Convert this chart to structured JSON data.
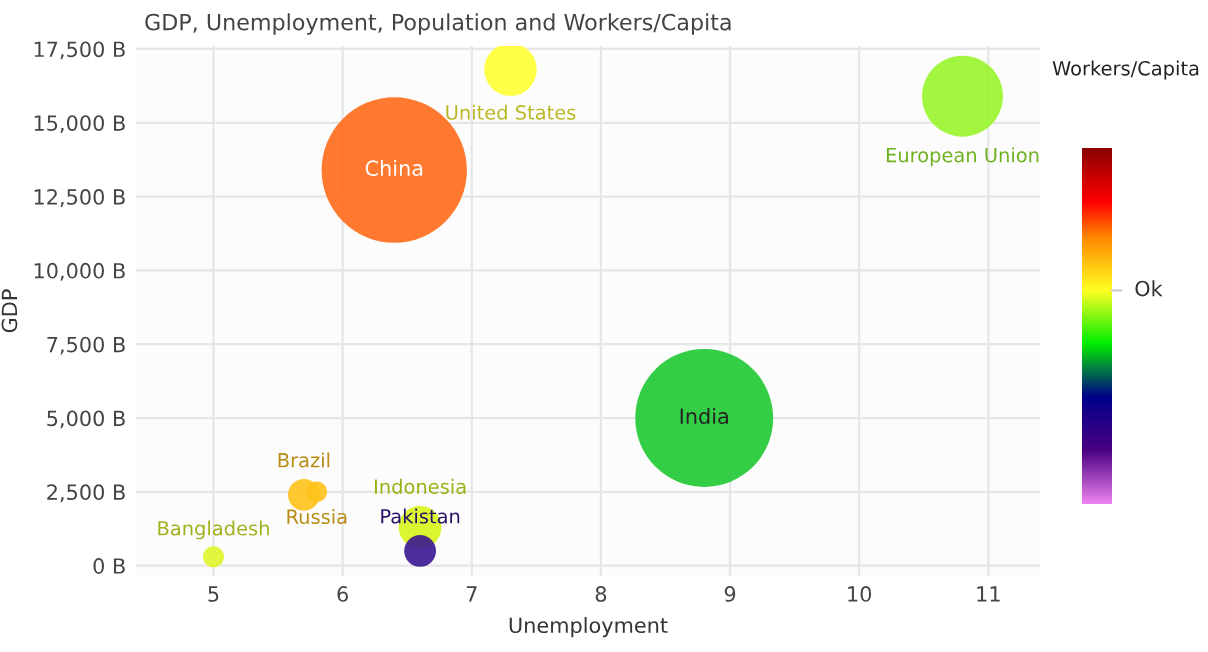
{
  "chart_data": {
    "type": "bubble",
    "title": "GDP, Unemployment, Population and Workers/Capita",
    "xlabel": "Unemployment",
    "ylabel": "GDP",
    "clabel": "Workers/Capita",
    "x": [
      6.4,
      7.3,
      10.8,
      8.8,
      5.7,
      5.8,
      6.6,
      6.6,
      5.0
    ],
    "values": [
      13400,
      16800,
      15900,
      5000,
      2400,
      2500,
      1300,
      500,
      300
    ],
    "sizes": [
      1,
      0.13,
      0.31,
      0.9,
      0.048,
      0.02,
      0.086,
      0.048,
      0.021
    ],
    "colors": [
      "#ff6a1a",
      "#ffff33",
      "#99f52a",
      "#1ec832",
      "#ffc21a",
      "#ffc21a",
      "#d7f51a",
      "#3a1690",
      "#e0f52a"
    ],
    "annotations": [
      {
        "text": "China",
        "x": 6.4,
        "y": 13400
      },
      {
        "text": "United States",
        "x": 7.3,
        "y": 16800
      },
      {
        "text": "European Union",
        "x": 10.8,
        "y": 15900
      },
      {
        "text": "India",
        "x": 8.8,
        "y": 5000
      },
      {
        "text": "Brazil",
        "x": 5.7,
        "y": 2400
      },
      {
        "text": "Russia",
        "x": 5.8,
        "y": 2500
      },
      {
        "text": "Indonesia",
        "x": 6.6,
        "y": 1300
      },
      {
        "text": "Pakistan",
        "x": 6.6,
        "y": 500
      },
      {
        "text": "Bangladesh",
        "x": 5.0,
        "y": 300
      },
      "Ok"
    ],
    "xlim": [
      4.4,
      11.4
    ],
    "xticks": [
      5,
      6,
      7,
      8,
      9,
      10,
      11
    ],
    "ylim": [
      -350,
      17600
    ],
    "yticks": [
      {
        "value": 0,
        "label": "0 B"
      },
      {
        "value": 2500,
        "label": "2,500 B"
      },
      {
        "value": 5000,
        "label": "5,000 B"
      },
      {
        "value": 7500,
        "label": "7,500 B"
      },
      {
        "value": 10000,
        "label": "10,000 B"
      },
      {
        "value": 12500,
        "label": "12,500 B"
      },
      {
        "value": 15000,
        "label": "15,000 B"
      },
      {
        "value": 17500,
        "label": "17,500 B"
      }
    ],
    "grid": true
  }
}
